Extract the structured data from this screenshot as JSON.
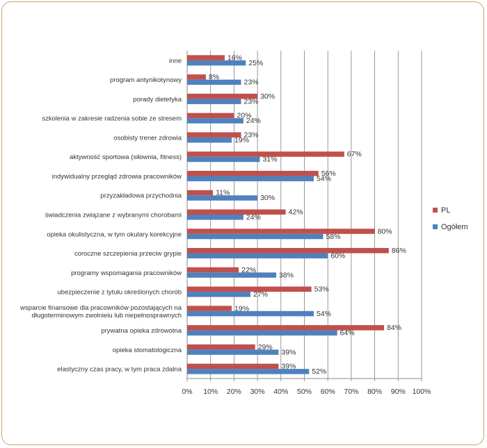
{
  "chart_data": {
    "type": "bar",
    "orientation": "horizontal",
    "title": "",
    "xlabel": "",
    "ylabel": "",
    "xlim": [
      0,
      100
    ],
    "x_ticks": [
      "0%",
      "10%",
      "20%",
      "30%",
      "40%",
      "50%",
      "60%",
      "70%",
      "80%",
      "90%",
      "100%"
    ],
    "categories": [
      [
        "inne"
      ],
      [
        "program antynikotynowy"
      ],
      [
        "porady dietetyka"
      ],
      [
        "szkolenia w zakresie radzenia sobie ze stresem"
      ],
      [
        "osobisty trener zdrowia"
      ],
      [
        "aktywność sportowa (siłownia, fitness)"
      ],
      [
        "indywidualny przegląd zdrowia pracowników"
      ],
      [
        "przyzakładowa przychodnia"
      ],
      [
        "świadczenia związane z wybranymi chorobami"
      ],
      [
        "opieka okulistyczna, w tym okulary korekcyjne"
      ],
      [
        "coroczne szczepienia przeciw grypie"
      ],
      [
        "programy wspomagania pracowników"
      ],
      [
        "ubezpieczenie z tytułu określonych chorób"
      ],
      [
        "wsparcie finansowe dla pracowników pozostających na",
        "długoterminowym zwolnieiu lub niepełnosprawnych"
      ],
      [
        "prywatna opieka zdrowotna"
      ],
      [
        "opieka stomatologiczna"
      ],
      [
        "elastyczny czas pracy, w tym praca zdalna"
      ]
    ],
    "series": [
      {
        "name": "PL",
        "color": "#c0504d",
        "values": [
          16,
          8,
          30,
          20,
          23,
          67,
          56,
          11,
          42,
          80,
          86,
          22,
          53,
          19,
          84,
          29,
          39
        ],
        "labels": [
          "16%",
          "8%",
          "30%",
          "20%",
          "23%",
          "67%",
          "56%",
          "11%",
          "42%",
          "80%",
          "86%",
          "22%",
          "53%",
          "19%",
          "84%",
          "29%",
          "39%"
        ]
      },
      {
        "name": "Ogółem",
        "color": "#4f81bd",
        "values": [
          25,
          23,
          23,
          24,
          19,
          31,
          54,
          30,
          24,
          58,
          60,
          38,
          27,
          54,
          64,
          39,
          52
        ],
        "labels": [
          "25%",
          "23%",
          "23%",
          "24%",
          "19%",
          "31%",
          "54%",
          "30%",
          "24%",
          "58%",
          "60%",
          "38%",
          "27%",
          "54%",
          "64%",
          "39%",
          "52%"
        ]
      }
    ],
    "legend_position": "right",
    "grid": true
  }
}
